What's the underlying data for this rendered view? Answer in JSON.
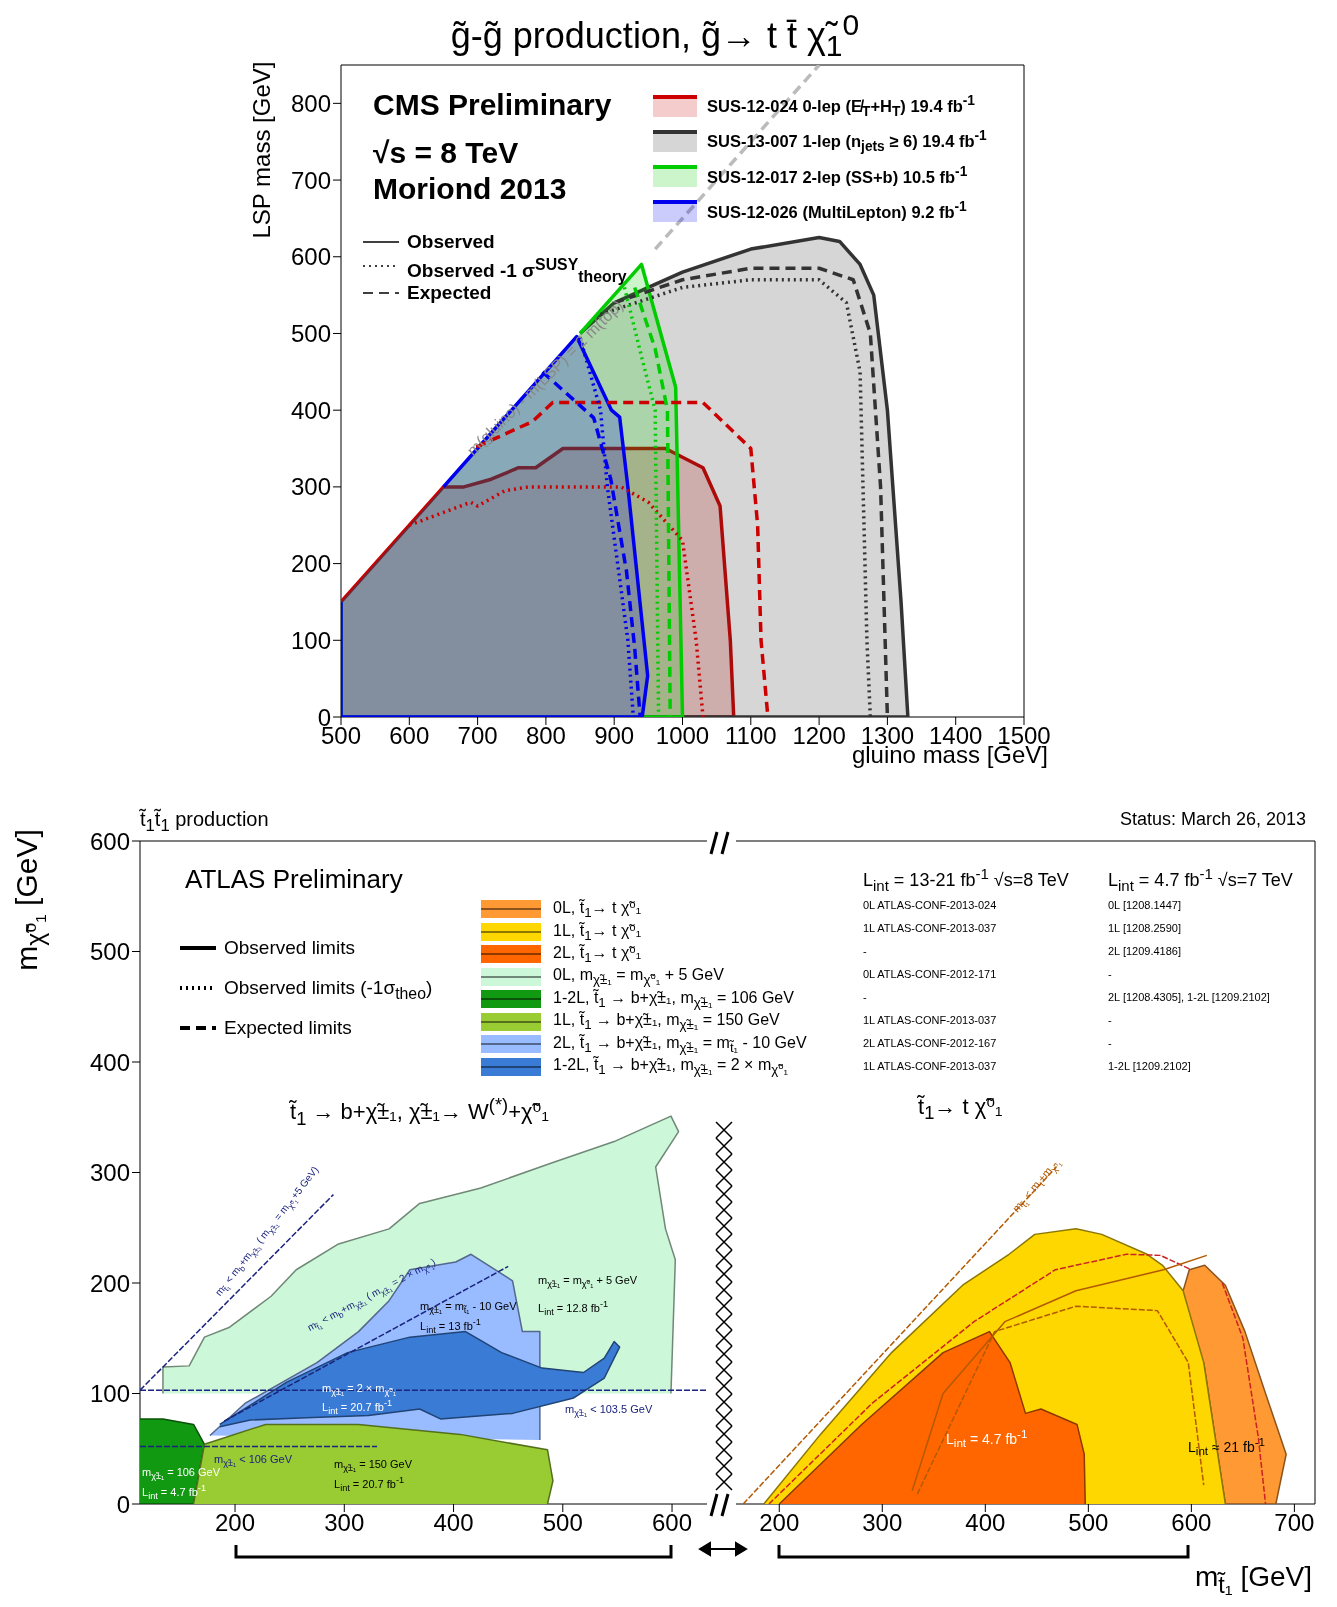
{
  "chart_data": [
    {
      "type": "line",
      "title": "g̃-g̃ production, g̃→ t t̄ χ̃$_{1}$$^{0}$",
      "xlabel": "gluino mass [GeV]",
      "ylabel": "LSP mass [GeV]",
      "xlim": [
        500,
        1500
      ],
      "ylim": [
        0,
        850
      ],
      "xticks": [
        500,
        600,
        700,
        800,
        900,
        1000,
        1100,
        1200,
        1300,
        1400,
        1500
      ],
      "yticks": [
        0,
        100,
        200,
        300,
        400,
        500,
        600,
        700,
        800
      ],
      "legend": "top right",
      "series": [
        {
          "type": "area",
          "name": "SUS-12-024 0-lep (E̸$_{T}$+H$_{T}$) 19.4 fb$^{-1}$",
          "color": "#cc0000",
          "x": [
            500,
            650,
            680,
            720,
            760,
            785,
            825,
            975,
            1030,
            1055,
            1070,
            1075,
            500
          ],
          "values": [
            150,
            300,
            300,
            310,
            325,
            325,
            350,
            350,
            325,
            275,
            100,
            0,
            0
          ]
        },
        {
          "type": "area",
          "name": "SUS-13-007 1-lep (n$_{jets}$ ≥ 6) 19.4 fb$^{-1}$",
          "color": "#333333",
          "x": [
            850,
            900,
            950,
            1000,
            1100,
            1200,
            1230,
            1260,
            1280,
            1300,
            1320,
            1330,
            500,
            500
          ],
          "values": [
            500,
            540,
            560,
            580,
            610,
            625,
            620,
            590,
            550,
            400,
            150,
            0,
            0,
            150
          ]
        },
        {
          "type": "area",
          "name": "SUS-12-017 2-lep (SS+b) 10.5 fb$^{-1}$",
          "color": "#00cc00",
          "x": [
            850,
            940,
            990,
            1000,
            500,
            500
          ],
          "values": [
            500,
            590,
            430,
            0,
            0,
            150
          ]
        },
        {
          "type": "area",
          "name": "SUS-12-026 (MultiLepton) 9.2 fb$^{-1}$",
          "color": "#0000ee",
          "x": [
            650,
            845,
            896,
            908,
            920,
            949,
            941,
            500,
            500
          ],
          "values": [
            300,
            496,
            400,
            391,
            300,
            54,
            0,
            0,
            150
          ]
        },
        {
          "type": "line",
          "color": "#cc0000",
          "line_style": "dashed",
          "x": [
            698,
            780,
            810,
            1030,
            1100,
            1110,
            1115,
            1125
          ],
          "values": [
            352,
            385,
            410,
            410,
            350,
            250,
            100,
            0
          ]
        },
        {
          "type": "line",
          "color": "#cc0000",
          "line_style": "dotted",
          "x": [
            600,
            690,
            700,
            740,
            775,
            910,
            950,
            1000,
            1020,
            1030
          ],
          "values": [
            250,
            280,
            275,
            295,
            300,
            300,
            280,
            230,
            100,
            0
          ]
        },
        {
          "type": "line",
          "color": "#333333",
          "line_style": "dashed",
          "x": [
            900,
            1000,
            1100,
            1200,
            1250,
            1275,
            1290,
            1300
          ],
          "values": [
            540,
            570,
            585,
            585,
            570,
            500,
            300,
            0
          ]
        },
        {
          "type": "line",
          "color": "#333333",
          "line_style": "dotted",
          "x": [
            880,
            1000,
            1100,
            1200,
            1240,
            1260,
            1270,
            1275
          ],
          "values": [
            525,
            560,
            570,
            570,
            540,
            450,
            100,
            0
          ]
        },
        {
          "type": "line",
          "color": "#00cc00",
          "line_style": "dashed",
          "x": [
            930,
            960,
            978,
            982
          ],
          "values": [
            560,
            480,
            400,
            0
          ]
        },
        {
          "type": "line",
          "color": "#00cc00",
          "line_style": "dotted",
          "x": [
            915,
            940,
            960,
            965
          ],
          "values": [
            560,
            470,
            400,
            0
          ]
        },
        {
          "type": "line",
          "color": "#0000ee",
          "line_style": "dashed",
          "x": [
            795,
            870,
            895,
            918,
            930,
            938
          ],
          "values": [
            450,
            390,
            310,
            190,
            90,
            0
          ]
        },
        {
          "type": "line",
          "color": "#0000ee",
          "line_style": "dotted",
          "x": [
            850,
            880,
            890,
            905,
            920,
            928
          ],
          "values": [
            495,
            400,
            300,
            200,
            100,
            0
          ]
        },
        {
          "type": "line",
          "color": "#bbbbbb",
          "line_style": "dashed",
          "x": [
            960,
            1200
          ],
          "values": [
            610,
            850
          ]
        }
      ],
      "annotations": [
        "CMS Preliminary",
        "√s = 8 TeV",
        "Moriond 2013",
        "Observed",
        "Observed -1 σ$^{SUSY}$$_{theory}$",
        "Expected",
        "m(gluino) - m(LSP) = 2 m(top)"
      ]
    },
    {
      "type": "line",
      "title": "t̃$_{1}$t̃$_{1}$ production",
      "ylabel": "m$_{χ̃⁰₁}$ [GeV]",
      "xlim": [
        113,
        632
      ],
      "ylim": [
        0,
        600
      ],
      "xticks": [
        200,
        300,
        400,
        500,
        600
      ],
      "yticks": [
        0,
        100,
        200,
        300,
        400,
        500,
        600
      ],
      "legend": "top right",
      "series": [
        {
          "type": "area",
          "name": "0L, m$_{χ̃±₁}$ = m$_{χ̃⁰₁}$ + 5 GeV",
          "color": "#ccf7d8",
          "x": [
            134,
            134,
            158,
            172,
            195,
            233,
            256,
            294,
            341,
            369,
            425,
            491,
            547,
            599,
            606,
            585,
            594,
            603,
            599
          ],
          "values": [
            100,
            124,
            125,
            151,
            160,
            188,
            212,
            235,
            249,
            272,
            286,
            309,
            328,
            351,
            337,
            305,
            249,
            221,
            100
          ]
        },
        {
          "type": "area",
          "name": "1-2L, t̃$_{1}$ → b+χ̃±₁, m$_{χ̃±₁}$ = 106 GeV",
          "color": "#119911",
          "x": [
            113,
            134,
            162,
            172,
            162,
            113
          ],
          "values": [
            77,
            77,
            72,
            54,
            0,
            0
          ]
        },
        {
          "type": "area",
          "name": "1L, t̃$_{1}$ → b+χ̃±₁, m$_{χ̃±₁}$ = 150 GeV",
          "color": "#99cc33",
          "x": [
            162,
            172,
            228,
            313,
            406,
            486,
            491,
            486
          ],
          "values": [
            0,
            54,
            72,
            72,
            63,
            49,
            21,
            0
          ]
        },
        {
          "type": "area",
          "name": "2L, t̃$_{1}$ → b+χ̃±₁, m$_{χ̃±₁}$ = m$_{t̃₁}$ - 10 GeV",
          "color": "#99bbff",
          "x": [
            177,
            209,
            275,
            313,
            341,
            360,
            402,
            416,
            454,
            463,
            479,
            479
          ],
          "values": [
            62,
            91,
            128,
            156,
            184,
            212,
            219,
            226,
            202,
            156,
            156,
            58
          ]
        },
        {
          "type": "area",
          "name": "1-2L, t̃$_{1}$ → b+χ̃±₁, m$_{χ̃±₁}$ = 2 × m$_{χ̃⁰₁}$",
          "color": "#3a7bd5",
          "x": [
            186,
            247,
            303,
            360,
            411,
            444,
            481,
            519,
            538,
            547,
            552,
            538,
            510,
            454,
            388,
            369,
            322,
            265,
            214,
            186
          ],
          "values": [
            72,
            110,
            137,
            151,
            156,
            137,
            123,
            119,
            132,
            147,
            142,
            114,
            96,
            82,
            77,
            86,
            80,
            78,
            76,
            70
          ]
        },
        {
          "type": "line",
          "color": "#1a237e",
          "line_style": "dashed",
          "x": [
            113,
            632
          ],
          "values": [
            103,
            103
          ]
        },
        {
          "type": "line",
          "color": "#1a237e",
          "line_style": "dashed",
          "x": [
            113,
            330
          ],
          "values": [
            52,
            52
          ]
        },
        {
          "type": "line",
          "color": "#1a237e",
          "line_style": "dashed",
          "x": [
            113,
            290
          ],
          "values": [
            103,
            280
          ]
        },
        {
          "type": "line",
          "color": "#1a237e",
          "line_style": "dashed",
          "x": [
            190,
            450
          ],
          "values": [
            75,
            215
          ]
        }
      ],
      "annotations": [
        "ATLAS Preliminary",
        "Observed limits",
        "Observed limits (-1σ$_{theo}$)",
        "Expected limits",
        "t̃$_{1}$ → b+χ̃±₁, χ̃±₁→ W$^{(*)}$+χ̃⁰₁",
        "m$_{χ̃±₁}$ = m$_{χ̃⁰₁}$ + 5 GeV",
        "L$_{int}$ = 12.8 fb$^{-1}$",
        "m$_{χ̃±₁}$ = m$_{t̃₁}$ - 10 GeV",
        "L$_{int}$ = 13 fb$^{-1}$",
        "m$_{χ̃±₁}$ = 2 × m$_{χ̃⁰₁}$",
        "L$_{int}$ = 20.7 fb$^{-1}$",
        "m$_{χ̃±₁}$ < 103.5 GeV",
        "m$_{χ̃±₁}$ < 106 GeV",
        "m$_{χ̃±₁}$ = 106 GeV",
        "L$_{int}$ = 4.7 fb$^{-1}$",
        "m$_{χ̃±₁}$ = 150 GeV",
        "L$_{int}$ = 20.7 fb$^{-1}$",
        "m$_{t̃₁}$ < m$_{b}$+m$_{χ̃±₁}$ ( m$_{χ̃±₁}$ = m$_{χ̃⁰₁}$+5 GeV)",
        "m$_{t̃₁}$ < m$_{b}$+m$_{χ̃±₁}$ ( m$_{χ̃±₁}$ = 2 × m$_{χ̃⁰₁}$)"
      ]
    },
    {
      "type": "line",
      "title": "Status: March 26, 2013",
      "xlabel": "m$_{t̃₁}$ [GeV]",
      "xlim": [
        158,
        720
      ],
      "ylim": [
        0,
        600
      ],
      "xticks": [
        200,
        300,
        400,
        500,
        600,
        700
      ],
      "yticks": [
        0,
        100,
        200,
        300,
        400,
        500,
        600
      ],
      "tick_labels": "x",
      "legend": "top left",
      "series": [
        {
          "type": "area",
          "name": "0L, t̃$_{1}$→ t χ̃⁰₁",
          "color": "#ff9933",
          "x": [
            592,
            598,
            613,
            633,
            652,
            672,
            692,
            682,
            633,
            612
          ],
          "values": [
            193,
            212,
            216,
            198,
            156,
            100,
            45,
            0,
            0,
            128
          ]
        },
        {
          "type": "area",
          "name": "1L, t̃$_{1}$→ t χ̃⁰₁",
          "color": "#ffd700",
          "x": [
            185,
            240,
            309,
            378,
            423,
            448,
            488,
            513,
            557,
            572,
            592,
            612,
            633
          ],
          "values": [
            0,
            63,
            137,
            198,
            226,
            244,
            249,
            244,
            226,
            216,
            193,
            128,
            0
          ]
        },
        {
          "type": "area",
          "name": "2L, t̃$_{1}$→ t χ̃⁰₁",
          "color": "#ff6600",
          "x": [
            200,
            280,
            359,
            404,
            424,
            439,
            454,
            489,
            496,
            497
          ],
          "values": [
            0,
            72,
            137,
            156,
            128,
            82,
            86,
            72,
            45,
            0
          ]
        },
        {
          "type": "line",
          "color": "#b35900",
          "line_style": "dashed",
          "x": [
            165,
            469
          ],
          "values": [
            0,
            305
          ]
        },
        {
          "type": "line",
          "color": "#cc2222",
          "line_style": "dashed",
          "x": [
            190,
            290,
            389,
            468,
            537,
            570,
            600
          ],
          "values": [
            0,
            91,
            165,
            212,
            226,
            225,
            212
          ]
        },
        {
          "type": "line",
          "color": "#cc2222",
          "line_style": "dashed",
          "x": [
            630,
            650,
            665,
            672
          ],
          "values": [
            200,
            150,
            60,
            0
          ]
        },
        {
          "type": "line",
          "color": "#b35900",
          "line_style": "solid",
          "x": [
            329,
            359,
            419,
            488,
            573,
            615
          ],
          "values": [
            12,
            100,
            165,
            193,
            212,
            225
          ]
        },
        {
          "type": "line",
          "color": "#b35900",
          "line_style": "dashed",
          "x": [
            334,
            409,
            488,
            567,
            597,
            612
          ],
          "values": [
            9,
            156,
            179,
            175,
            128,
            17
          ]
        }
      ],
      "annotations": [
        "L$_{int}$ = 13-21 fb$^{-1}$ √s=8 TeV",
        "0L ATLAS-CONF-2013-024",
        "1L ATLAS-CONF-2013-037",
        "-",
        "0L ATLAS-CONF-2012-171",
        "-",
        "1L ATLAS-CONF-2013-037",
        "2L ATLAS-CONF-2012-167",
        "1L ATLAS-CONF-2013-037",
        "L$_{int}$ = 4.7 fb$^{-1}$ √s=7 TeV",
        "0L [1208.1447]",
        "1L [1208.2590]",
        "2L [1209.4186]",
        "-",
        "2L [1208.4305], 1-2L [1209.2102]",
        "-",
        "-",
        "1-2L [1209.2102]",
        "t̃$_{1}$→ t χ̃⁰₁",
        "L$_{int}$ = 4.7 fb$^{-1}$",
        "L$_{int}$ ≈ 21 fb$^{-1}$",
        "m$_{t̃₁}$ < m$_{t}$+m$_{χ̃⁰₁}$"
      ]
    }
  ]
}
